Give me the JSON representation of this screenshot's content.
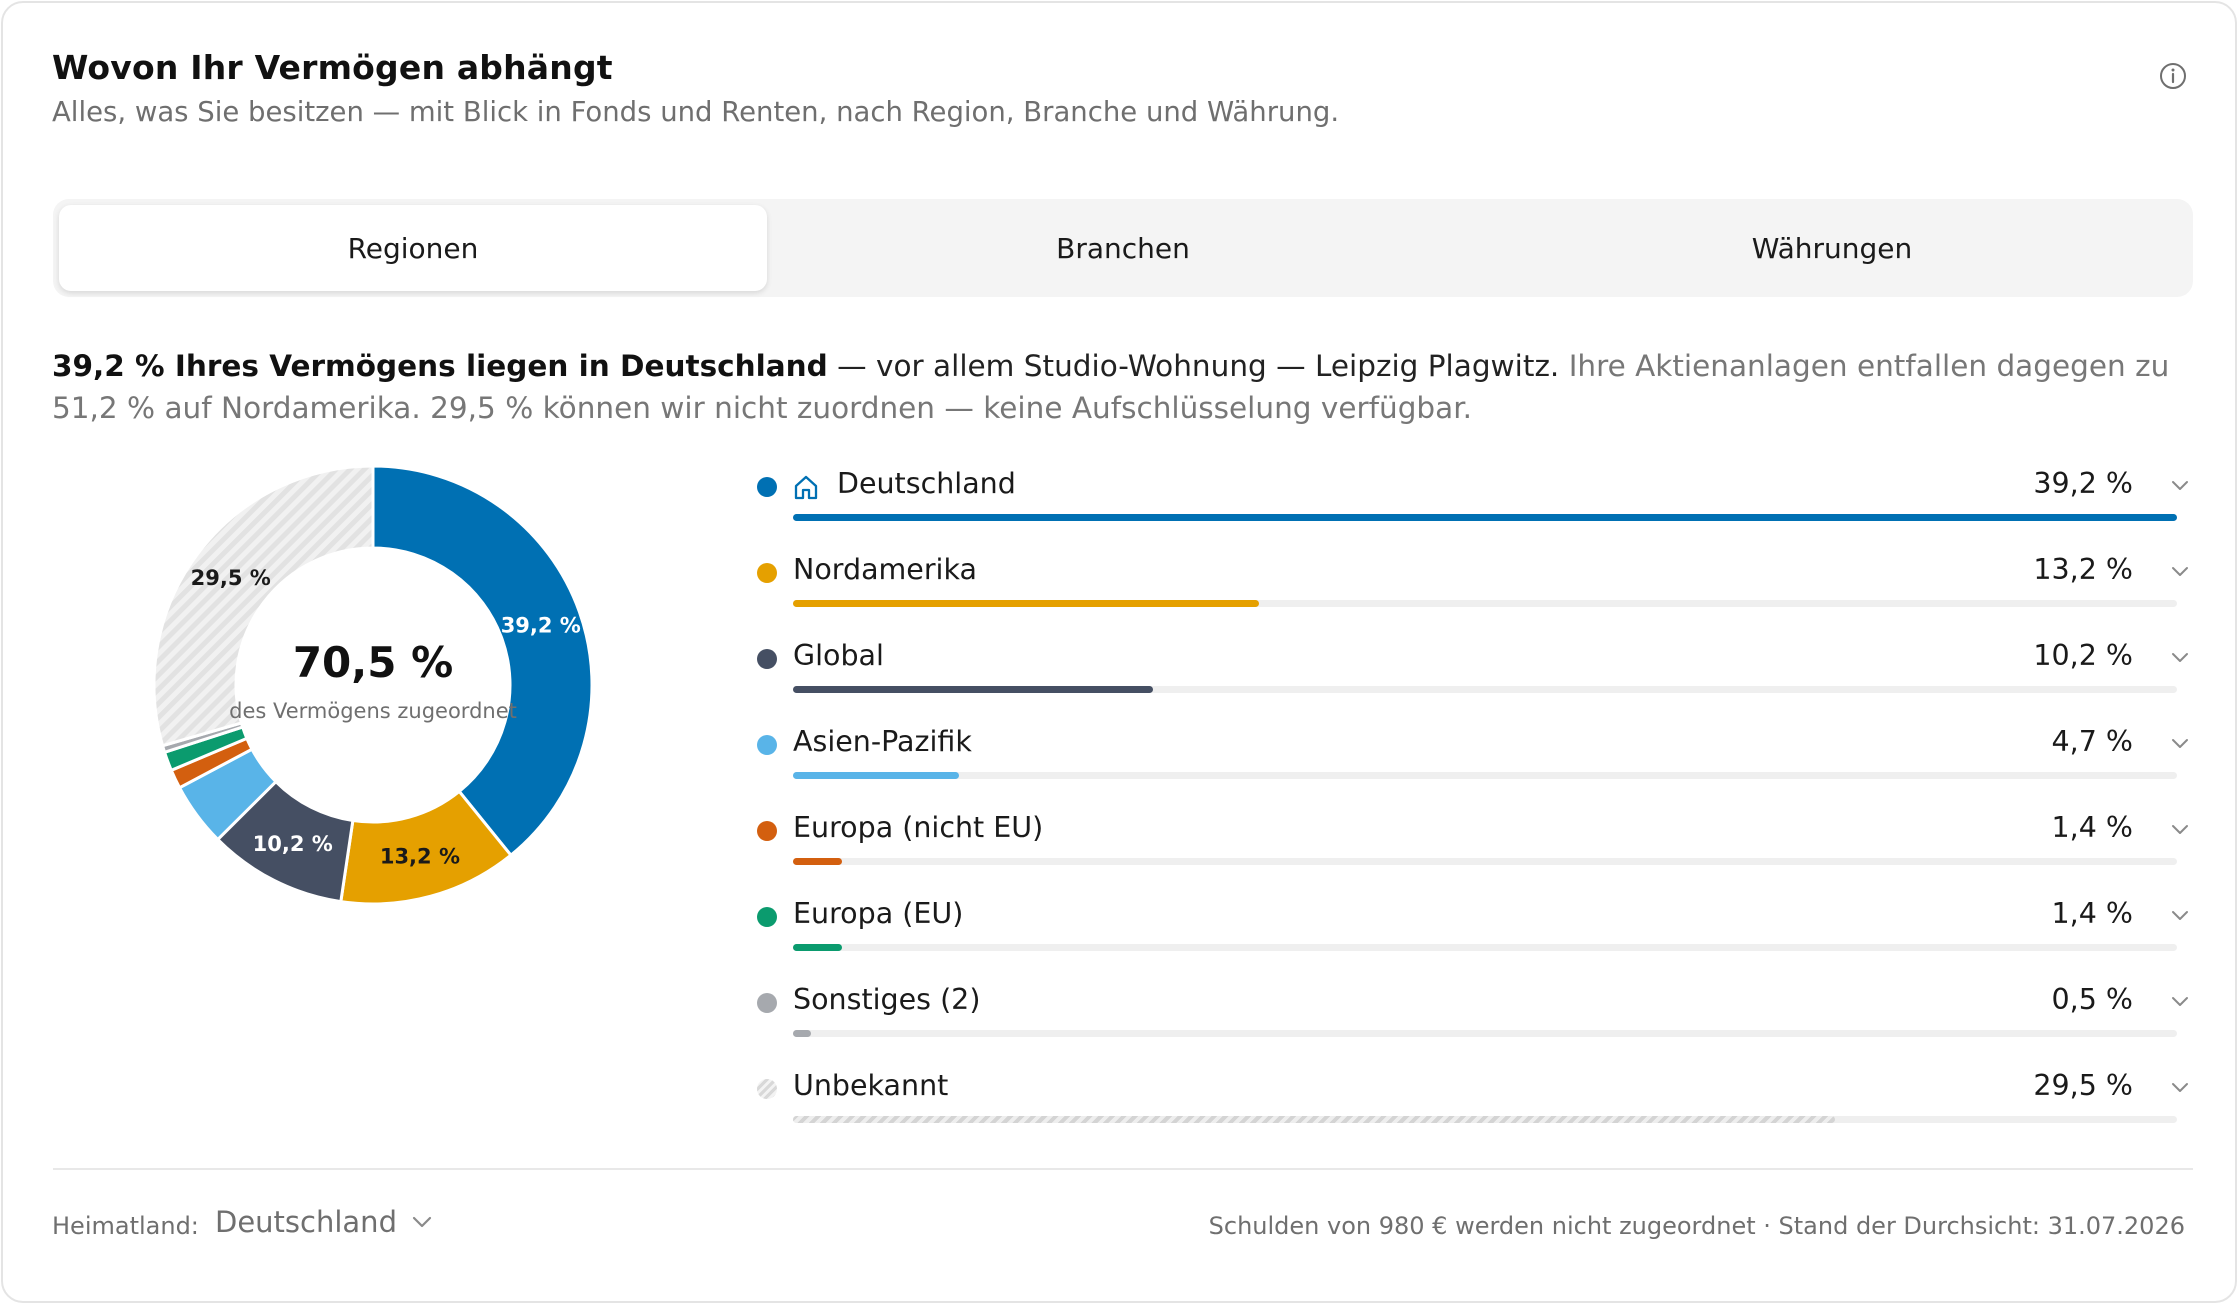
{
  "header": {
    "title": "Wovon Ihr Vermögen abhängt",
    "subtitle": "Alles, was Sie besitzen — mit Blick in Fonds und Renten, nach Region, Branche und Währung.",
    "info_icon": "info-icon"
  },
  "tabs": [
    {
      "label": "Regionen",
      "active": true
    },
    {
      "label": "Branchen",
      "active": false
    },
    {
      "label": "Währungen",
      "active": false
    }
  ],
  "summary": {
    "bold": "39,2 % Ihres Vermögens liegen in Deutschland",
    "normal": " — vor allem Studio-Wohnung — Leipzig Plagwitz.",
    "muted": " Ihre Aktienanlagen entfallen dagegen zu 51,2 % auf Nordamerika. 29,5 % können wir nicht zuordnen — keine Aufschlüsselung verfügbar."
  },
  "donut": {
    "center_value": "70,5 %",
    "center_caption": "des Vermögens zugeordnet"
  },
  "chart_data": {
    "type": "pie",
    "variant": "donut",
    "slices": [
      {
        "name": "Deutschland",
        "value": 39.2,
        "color": "#0070b3",
        "label": "39,2 %",
        "label_color": "#ffffff"
      },
      {
        "name": "Nordamerika",
        "value": 13.2,
        "color": "#e5a000",
        "label": "13,2 %",
        "label_color": "#1a1a1a"
      },
      {
        "name": "Global",
        "value": 10.2,
        "color": "#454f63",
        "label": "10,2 %",
        "label_color": "#ffffff"
      },
      {
        "name": "Asien-Pazifik",
        "value": 4.7,
        "color": "#59b4e8",
        "label": "",
        "label_color": "#1a1a1a"
      },
      {
        "name": "Europa (nicht EU)",
        "value": 1.4,
        "color": "#d35f0f",
        "label": "",
        "label_color": "#1a1a1a"
      },
      {
        "name": "Europa (EU)",
        "value": 1.4,
        "color": "#0b9b6e",
        "label": "",
        "label_color": "#1a1a1a"
      },
      {
        "name": "Sonstiges (2)",
        "value": 0.5,
        "color": "#a6a9ae",
        "label": "",
        "label_color": "#1a1a1a"
      },
      {
        "name": "Unbekannt",
        "value": 29.5,
        "color": "hatch",
        "label": "29,5 %",
        "label_color": "#1a1a1a"
      }
    ]
  },
  "regions": [
    {
      "name": "Deutschland",
      "pct": "39,2 %",
      "value": 39.2,
      "color": "#0070b3",
      "home": true,
      "hatch": false
    },
    {
      "name": "Nordamerika",
      "pct": "13,2 %",
      "value": 13.2,
      "color": "#e5a000",
      "home": false,
      "hatch": false
    },
    {
      "name": "Global",
      "pct": "10,2 %",
      "value": 10.2,
      "color": "#454f63",
      "home": false,
      "hatch": false
    },
    {
      "name": "Asien-Pazifik",
      "pct": "4,7 %",
      "value": 4.7,
      "color": "#59b4e8",
      "home": false,
      "hatch": false
    },
    {
      "name": "Europa (nicht EU)",
      "pct": "1,4 %",
      "value": 1.4,
      "color": "#d35f0f",
      "home": false,
      "hatch": false
    },
    {
      "name": "Europa (EU)",
      "pct": "1,4 %",
      "value": 1.4,
      "color": "#0b9b6e",
      "home": false,
      "hatch": false
    },
    {
      "name": "Sonstiges (2)",
      "pct": "0,5 %",
      "value": 0.5,
      "color": "#a6a9ae",
      "home": false,
      "hatch": false
    },
    {
      "name": "Unbekannt",
      "pct": "29,5 %",
      "value": 29.5,
      "color": "hatch",
      "home": false,
      "hatch": true
    }
  ],
  "footer": {
    "home_label": "Heimatland:",
    "home_value": "Deutschland",
    "note": "Schulden von 980 € werden nicht zugeordnet · Stand der Durchsicht: 31.07.2026"
  }
}
